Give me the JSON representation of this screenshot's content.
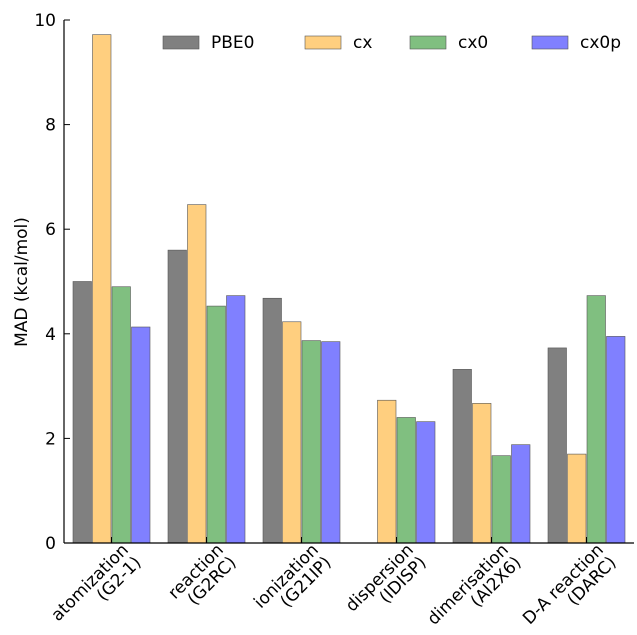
{
  "chart_data": {
    "type": "bar",
    "title": "",
    "xlabel": "",
    "ylabel": "MAD (kcal/mol)",
    "ylim": [
      0,
      10
    ],
    "yticks": [
      0,
      2,
      4,
      6,
      8,
      10
    ],
    "grid": false,
    "legend": "top",
    "categories": [
      "atomization\n(G2-1)",
      "reaction\n(G2RC)",
      "ionization\n(G21IP)",
      "dispersion\n(IDISP)",
      "dimerisation\n(Al2X6)",
      "D-A reaction\n(DARC)"
    ],
    "series": [
      {
        "name": "PBE0",
        "color": "#808080",
        "values": [
          5.0,
          5.6,
          4.68,
          null,
          3.32,
          3.73
        ]
      },
      {
        "name": "cx",
        "color": "#ffcf7f",
        "values": [
          9.72,
          6.47,
          4.23,
          2.73,
          2.67,
          1.7
        ]
      },
      {
        "name": "cx0",
        "color": "#80bf80",
        "values": [
          4.9,
          4.53,
          3.87,
          2.4,
          1.67,
          4.73
        ]
      },
      {
        "name": "cx0p",
        "color": "#8080ff",
        "values": [
          4.13,
          4.73,
          3.85,
          2.32,
          1.88,
          3.95
        ]
      }
    ]
  }
}
